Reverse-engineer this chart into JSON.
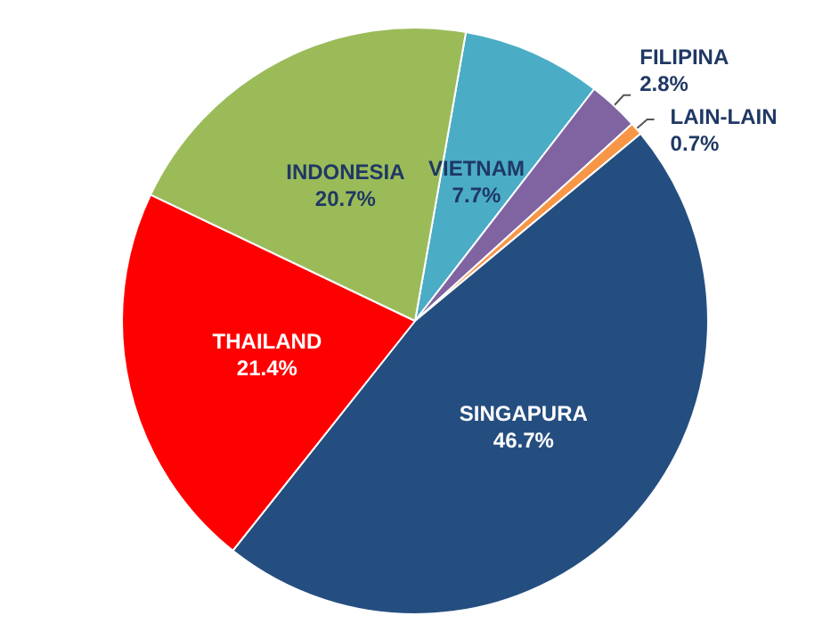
{
  "chart_data": {
    "type": "pie",
    "categories": [
      "VIETNAM",
      "FILIPINA",
      "LAIN-LAIN",
      "SINGAPURA",
      "THAILAND",
      "INDONESIA"
    ],
    "values": [
      7.7,
      2.8,
      0.7,
      46.7,
      21.4,
      20.7
    ],
    "value_labels": [
      "7.7%",
      "2.8%",
      "0.7%",
      "46.7%",
      "21.4%",
      "20.7%"
    ],
    "colors": [
      "#4bacc6",
      "#8064a2",
      "#f79646",
      "#254e80",
      "#ff0000",
      "#9bbb59"
    ],
    "legend": false
  }
}
